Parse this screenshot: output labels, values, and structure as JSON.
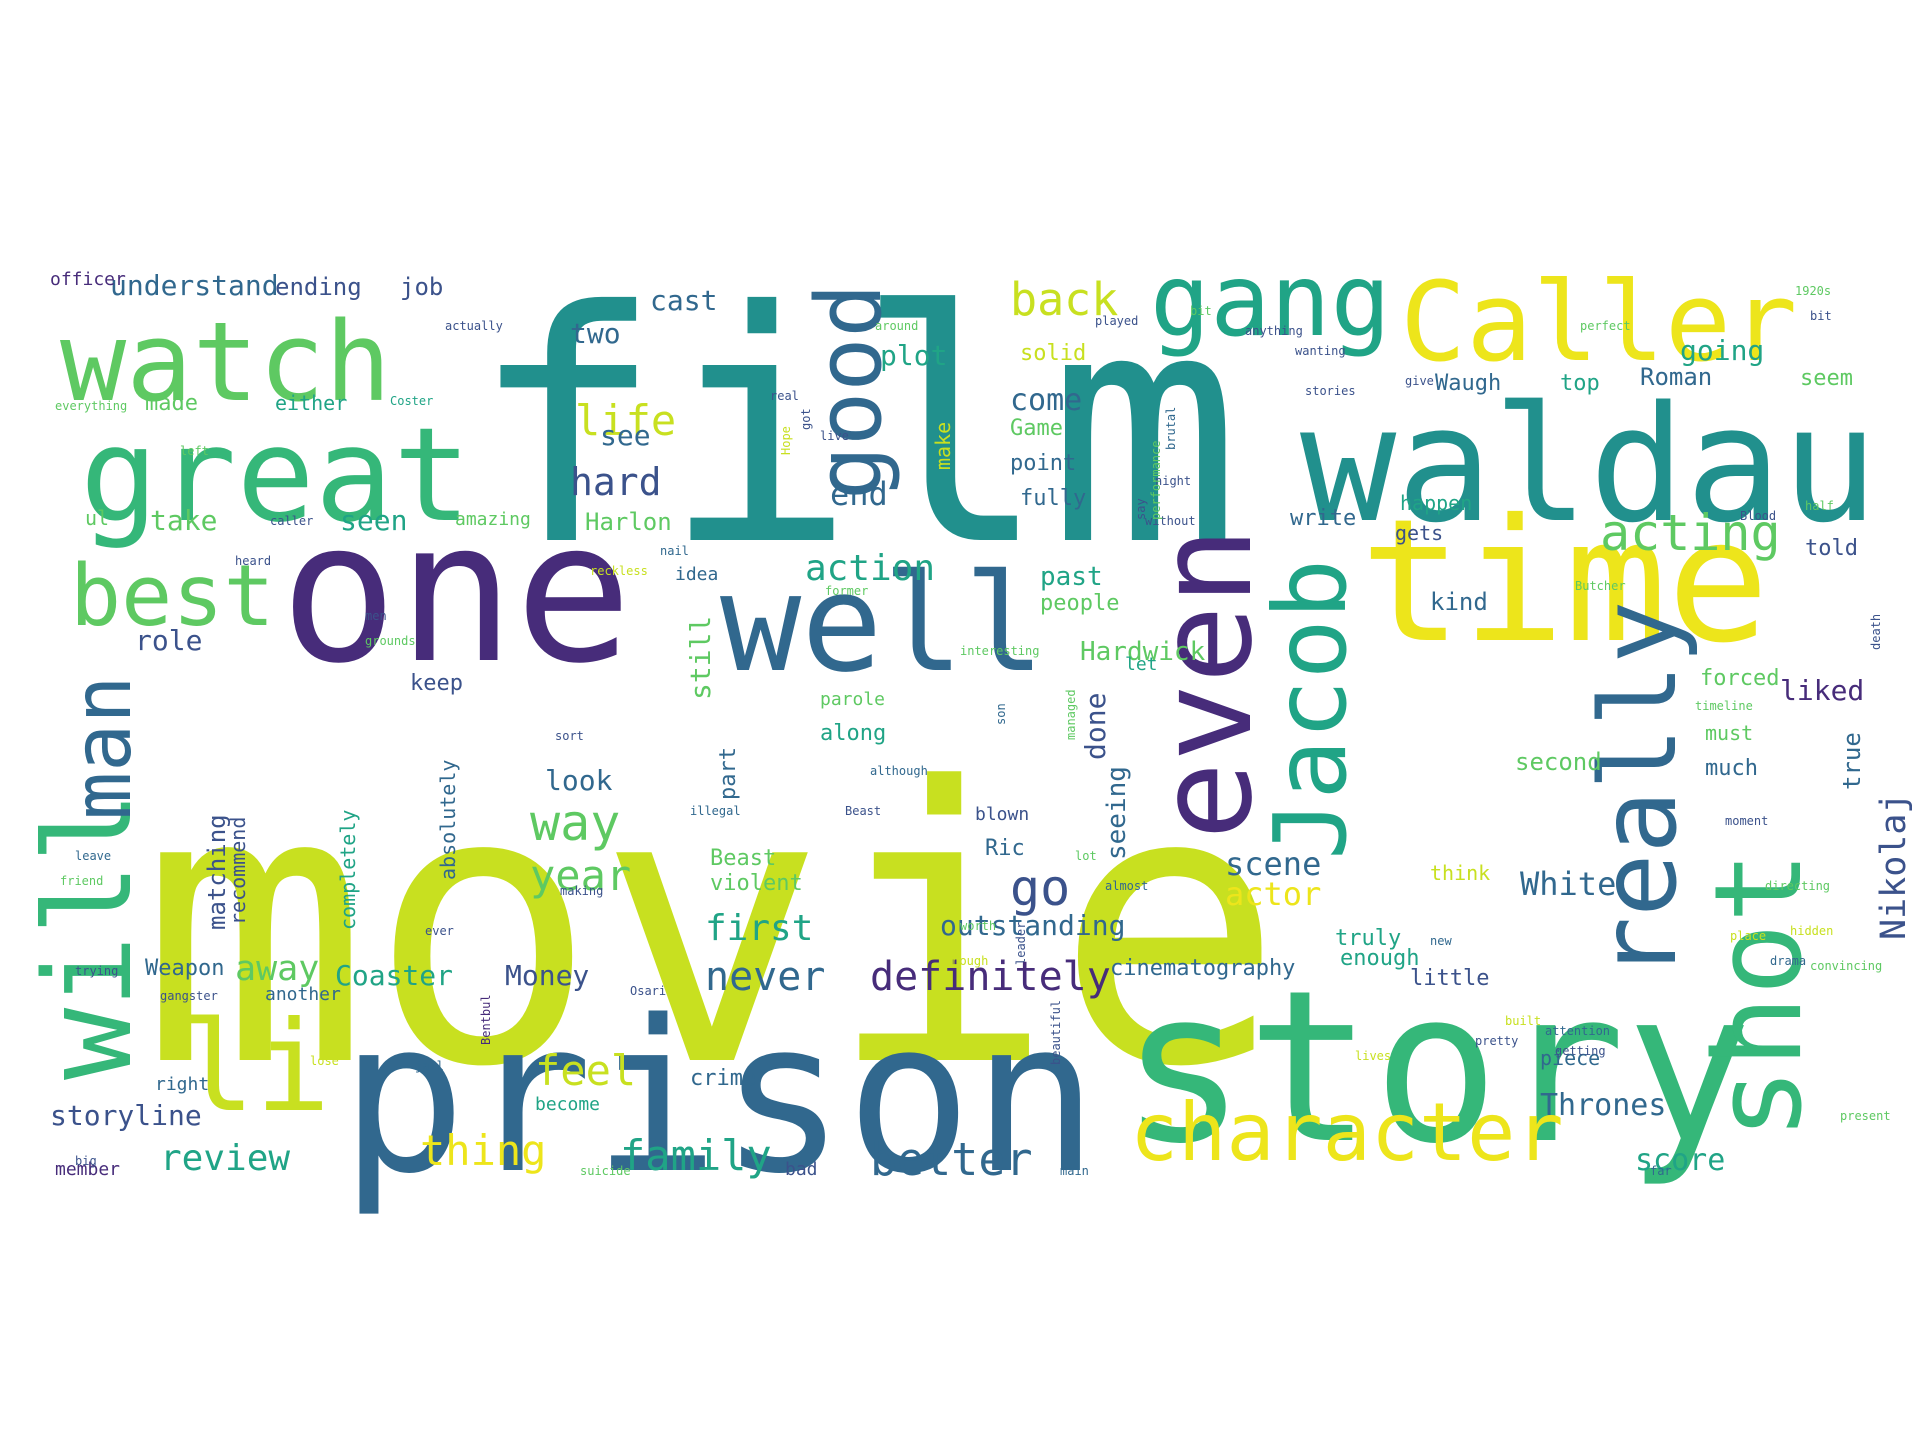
{
  "colors": {
    "background": "#ffffff",
    "palette": {
      "lime": "#c8e020",
      "yellow": "#ede51b",
      "teal": "#21908d",
      "blue": "#31688e",
      "indigo": "#3b528b",
      "purple": "#472c7a",
      "green": "#5ec962",
      "seagreen": "#35b779",
      "aqua": "#20a486",
      "darkpurple": "#440154"
    }
  },
  "words": [
    {
      "text": "movie",
      "color": "lime"
    },
    {
      "text": "film",
      "color": "teal"
    },
    {
      "text": "prison",
      "color": "blue"
    },
    {
      "text": "story",
      "color": "seagreen"
    },
    {
      "text": "one",
      "color": "purple"
    },
    {
      "text": "time",
      "color": "yellow"
    },
    {
      "text": "waldau",
      "color": "teal"
    },
    {
      "text": "Caller",
      "color": "yellow"
    },
    {
      "text": "great",
      "color": "seagreen"
    },
    {
      "text": "watch",
      "color": "green"
    },
    {
      "text": "well",
      "color": "blue"
    },
    {
      "text": "shot",
      "color": "seagreen"
    },
    {
      "text": "li",
      "color": "lime"
    },
    {
      "text": "will",
      "color": "seagreen"
    },
    {
      "text": "even",
      "color": "purple"
    },
    {
      "text": "character",
      "color": "yellow"
    },
    {
      "text": "Jacob",
      "color": "aqua"
    },
    {
      "text": "really",
      "color": "blue"
    },
    {
      "text": "gang",
      "color": "aqua"
    },
    {
      "text": "best",
      "color": "green"
    },
    {
      "text": "man",
      "color": "blue"
    },
    {
      "text": "good",
      "color": "blue"
    },
    {
      "text": "acting",
      "color": "green"
    },
    {
      "text": "back",
      "color": "lime"
    },
    {
      "text": "life",
      "color": "lime"
    },
    {
      "text": "hard",
      "color": "indigo"
    },
    {
      "text": "way",
      "color": "green"
    },
    {
      "text": "year",
      "color": "green"
    },
    {
      "text": "go",
      "color": "indigo"
    },
    {
      "text": "feel",
      "color": "lime"
    },
    {
      "text": "family",
      "color": "aqua"
    },
    {
      "text": "better",
      "color": "blue"
    },
    {
      "text": "never",
      "color": "blue"
    },
    {
      "text": "definitely",
      "color": "purple"
    },
    {
      "text": "review",
      "color": "aqua"
    },
    {
      "text": "thing",
      "color": "yellow"
    },
    {
      "text": "scene",
      "color": "blue"
    },
    {
      "text": "actor",
      "color": "yellow"
    },
    {
      "text": "first",
      "color": "aqua"
    },
    {
      "text": "away",
      "color": "green"
    },
    {
      "text": "Coaster",
      "color": "aqua"
    },
    {
      "text": "Money",
      "color": "indigo"
    },
    {
      "text": "White",
      "color": "blue"
    },
    {
      "text": "Nikolaj",
      "color": "indigo"
    },
    {
      "text": "Thrones",
      "color": "blue"
    },
    {
      "text": "score",
      "color": "aqua"
    },
    {
      "text": "action",
      "color": "aqua"
    },
    {
      "text": "end",
      "color": "blue"
    },
    {
      "text": "come",
      "color": "blue"
    },
    {
      "text": "see",
      "color": "blue"
    },
    {
      "text": "cast",
      "color": "blue"
    },
    {
      "text": "plot",
      "color": "aqua"
    },
    {
      "text": "two",
      "color": "blue"
    },
    {
      "text": "understand",
      "color": "blue"
    },
    {
      "text": "ending",
      "color": "indigo"
    },
    {
      "text": "job",
      "color": "indigo"
    },
    {
      "text": "officer",
      "color": "purple"
    },
    {
      "text": "take",
      "color": "green"
    },
    {
      "text": "seen",
      "color": "aqua"
    },
    {
      "text": "role",
      "color": "indigo"
    },
    {
      "text": "past",
      "color": "aqua"
    },
    {
      "text": "people",
      "color": "green"
    },
    {
      "text": "Hardwick",
      "color": "green"
    },
    {
      "text": "still",
      "color": "green"
    },
    {
      "text": "done",
      "color": "indigo"
    },
    {
      "text": "seeing",
      "color": "blue"
    },
    {
      "text": "look",
      "color": "blue"
    },
    {
      "text": "along",
      "color": "aqua"
    },
    {
      "text": "parole",
      "color": "green"
    },
    {
      "text": "matching",
      "color": "indigo"
    },
    {
      "text": "recommend",
      "color": "indigo"
    },
    {
      "text": "completely",
      "color": "aqua"
    },
    {
      "text": "absolutely",
      "color": "blue"
    },
    {
      "text": "storyline",
      "color": "indigo"
    },
    {
      "text": "little",
      "color": "indigo"
    },
    {
      "text": "cinematography",
      "color": "blue"
    },
    {
      "text": "outstanding",
      "color": "blue"
    },
    {
      "text": "enough",
      "color": "aqua"
    },
    {
      "text": "truly",
      "color": "aqua"
    },
    {
      "text": "piece",
      "color": "blue"
    },
    {
      "text": "liked",
      "color": "purple"
    },
    {
      "text": "forced",
      "color": "green"
    },
    {
      "text": "much",
      "color": "blue"
    },
    {
      "text": "second",
      "color": "green"
    },
    {
      "text": "must",
      "color": "green"
    },
    {
      "text": "think",
      "color": "lime"
    },
    {
      "text": "kind",
      "color": "blue"
    },
    {
      "text": "told",
      "color": "indigo"
    },
    {
      "text": "gets",
      "color": "indigo"
    },
    {
      "text": "write",
      "color": "blue"
    },
    {
      "text": "happen",
      "color": "aqua"
    },
    {
      "text": "Roman",
      "color": "blue"
    },
    {
      "text": "going",
      "color": "aqua"
    },
    {
      "text": "seem",
      "color": "green"
    },
    {
      "text": "top",
      "color": "aqua"
    },
    {
      "text": "Waugh",
      "color": "blue"
    },
    {
      "text": "solid",
      "color": "lime"
    },
    {
      "text": "Game",
      "color": "green"
    },
    {
      "text": "point",
      "color": "blue"
    },
    {
      "text": "fully",
      "color": "blue"
    },
    {
      "text": "Harlon",
      "color": "green"
    },
    {
      "text": "made",
      "color": "green"
    },
    {
      "text": "either",
      "color": "aqua"
    },
    {
      "text": "amazing",
      "color": "green"
    },
    {
      "text": "idea",
      "color": "blue"
    },
    {
      "text": "let",
      "color": "aqua"
    },
    {
      "text": "keep",
      "color": "indigo"
    },
    {
      "text": "Weapon",
      "color": "blue"
    },
    {
      "text": "another",
      "color": "blue"
    },
    {
      "text": "right",
      "color": "blue"
    },
    {
      "text": "member",
      "color": "purple"
    },
    {
      "text": "bad",
      "color": "indigo"
    },
    {
      "text": "become",
      "color": "aqua"
    },
    {
      "text": "crime",
      "color": "blue"
    },
    {
      "text": "part",
      "color": "blue"
    },
    {
      "text": "Beast",
      "color": "green"
    },
    {
      "text": "violent",
      "color": "green"
    },
    {
      "text": "blown",
      "color": "indigo"
    },
    {
      "text": "Ric",
      "color": "blue"
    },
    {
      "text": "make",
      "color": "lime"
    },
    {
      "text": "true",
      "color": "blue"
    },
    {
      "text": "everything",
      "color": "green"
    },
    {
      "text": "ul",
      "color": "green"
    },
    {
      "text": "actually",
      "color": "indigo"
    },
    {
      "text": "Coster",
      "color": "aqua"
    },
    {
      "text": "around",
      "color": "green"
    },
    {
      "text": "played",
      "color": "indigo"
    },
    {
      "text": "anything",
      "color": "indigo"
    },
    {
      "text": "wanting",
      "color": "indigo"
    },
    {
      "text": "stories",
      "color": "indigo"
    },
    {
      "text": "perfect",
      "color": "green"
    },
    {
      "text": "give",
      "color": "indigo"
    },
    {
      "text": "1920s",
      "color": "green"
    },
    {
      "text": "bit",
      "color": "indigo"
    },
    {
      "text": "half",
      "color": "green"
    },
    {
      "text": "Butcher",
      "color": "green"
    },
    {
      "text": "timeline",
      "color": "green"
    },
    {
      "text": "death",
      "color": "indigo"
    },
    {
      "text": "moment",
      "color": "indigo"
    },
    {
      "text": "directing",
      "color": "green"
    },
    {
      "text": "hidden",
      "color": "lime"
    },
    {
      "text": "place",
      "color": "lime"
    },
    {
      "text": "drama",
      "color": "blue"
    },
    {
      "text": "convincing",
      "color": "green"
    },
    {
      "text": "present",
      "color": "green"
    },
    {
      "text": "far",
      "color": "blue"
    },
    {
      "text": "new",
      "color": "blue"
    },
    {
      "text": "getting",
      "color": "indigo"
    },
    {
      "text": "attention",
      "color": "blue"
    },
    {
      "text": "pretty",
      "color": "indigo"
    },
    {
      "text": "lose",
      "color": "lime"
    },
    {
      "text": "jail",
      "color": "blue"
    },
    {
      "text": "Osari",
      "color": "indigo"
    },
    {
      "text": "gangster",
      "color": "indigo"
    },
    {
      "text": "Bentbul",
      "color": "purple"
    },
    {
      "text": "beautiful",
      "color": "indigo"
    },
    {
      "text": "suicide",
      "color": "green"
    },
    {
      "text": "main",
      "color": "blue"
    },
    {
      "text": "leave",
      "color": "blue"
    },
    {
      "text": "friend",
      "color": "green"
    },
    {
      "text": "trying",
      "color": "indigo"
    },
    {
      "text": "big",
      "color": "indigo"
    },
    {
      "text": "ever",
      "color": "indigo"
    },
    {
      "text": "leader",
      "color": "indigo"
    },
    {
      "text": "making",
      "color": "indigo"
    },
    {
      "text": "worth",
      "color": "green"
    },
    {
      "text": "almost",
      "color": "blue"
    },
    {
      "text": "lot",
      "color": "green"
    },
    {
      "text": "managed",
      "color": "green"
    },
    {
      "text": "although",
      "color": "blue"
    },
    {
      "text": "Beast",
      "color": "indigo"
    },
    {
      "text": "illegal",
      "color": "blue"
    },
    {
      "text": "sort",
      "color": "indigo"
    },
    {
      "text": "son",
      "color": "blue"
    },
    {
      "text": "interesting",
      "color": "green"
    },
    {
      "text": "nail",
      "color": "blue"
    },
    {
      "text": "without",
      "color": "indigo"
    },
    {
      "text": "say",
      "color": "indigo"
    },
    {
      "text": "brutal",
      "color": "blue"
    },
    {
      "text": "night",
      "color": "indigo"
    },
    {
      "text": "performance",
      "color": "green"
    },
    {
      "text": "Blood",
      "color": "indigo"
    },
    {
      "text": "got",
      "color": "indigo"
    },
    {
      "text": "former",
      "color": "green"
    },
    {
      "text": "Hope",
      "color": "lime"
    },
    {
      "text": "real",
      "color": "indigo"
    },
    {
      "text": "bit",
      "color": "green"
    },
    {
      "text": "left",
      "color": "green"
    },
    {
      "text": "live",
      "color": "indigo"
    },
    {
      "text": "caller",
      "color": "indigo"
    },
    {
      "text": "heard",
      "color": "indigo"
    },
    {
      "text": "men",
      "color": "indigo"
    },
    {
      "text": "grounds",
      "color": "green"
    },
    {
      "text": "reckless",
      "color": "lime"
    },
    {
      "text": "enough",
      "color": "lime"
    },
    {
      "text": "lives",
      "color": "lime"
    },
    {
      "text": "built",
      "color": "lime"
    }
  ]
}
